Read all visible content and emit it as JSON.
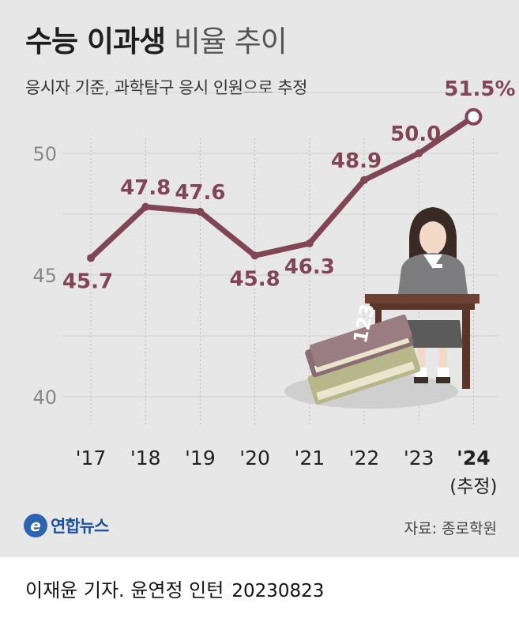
{
  "header": {
    "title_bold": "수능 이과생",
    "title_light": "비율 추이",
    "subtitle": "응시자 기준, 과학탐구 응시 인원으로 추정"
  },
  "source": "자료: 종로학원",
  "logo_text": "연합뉴스",
  "credit": {
    "author": "이재윤 기자. 윤연정 인턴",
    "date": "20230823"
  },
  "chart_data": {
    "type": "line",
    "categories": [
      "'17",
      "'18",
      "'19",
      "'20",
      "'21",
      "'22",
      "'23",
      "'24"
    ],
    "category_notes": [
      "",
      "",
      "",
      "",
      "",
      "",
      "",
      "(추정)"
    ],
    "values": [
      45.7,
      47.8,
      47.6,
      45.8,
      46.3,
      48.9,
      50.0,
      51.5
    ],
    "value_labels": [
      "45.7",
      "47.8",
      "47.6",
      "45.8",
      "46.3",
      "48.9",
      "50.0",
      "51.5%"
    ],
    "yticks": [
      40,
      45,
      50
    ],
    "ylim": [
      40,
      52
    ],
    "grid": true,
    "line_color": "#804656",
    "label_color": "#804656",
    "illustration": "student-at-desk-with-books"
  }
}
